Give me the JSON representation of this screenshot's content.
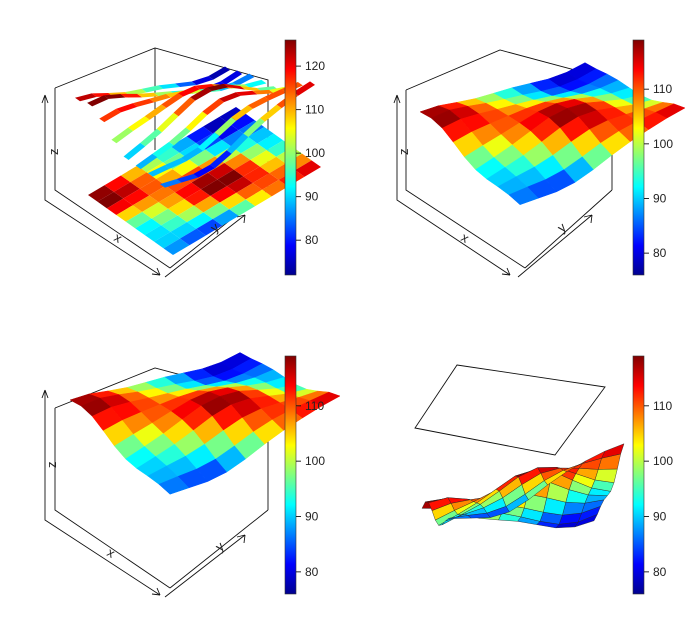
{
  "chart_data": [
    {
      "type": "surface-3d",
      "style": "ribbon",
      "panel": "top-left",
      "axis_labels": {
        "x": "x",
        "y": "y",
        "z": "z"
      },
      "floor": "image",
      "colorbar": {
        "ticks": [
          "80",
          "90",
          "100",
          "110",
          "120"
        ],
        "range": [
          72,
          126
        ]
      }
    },
    {
      "type": "surface-3d",
      "style": "surface",
      "panel": "top-right",
      "axis_labels": {
        "x": "x",
        "y": "y",
        "z": "z"
      },
      "floor": "contour",
      "colorbar": {
        "ticks": [
          "80",
          "90",
          "100",
          "110"
        ],
        "range": [
          76,
          119
        ]
      }
    },
    {
      "type": "surface-3d",
      "style": "surface",
      "panel": "bottom-left",
      "axis_labels": {
        "x": "x",
        "y": "y",
        "z": "z"
      },
      "floor": "filled-contour",
      "colorbar": {
        "ticks": [
          "80",
          "90",
          "100",
          "110"
        ],
        "range": [
          76,
          119
        ]
      }
    },
    {
      "type": "surface-3d",
      "style": "surface-with-contours",
      "panel": "bottom-right",
      "axis_labels": {
        "x": "",
        "y": "",
        "z": ""
      },
      "floor": "contour-top",
      "colorbar": {
        "ticks": [
          "80",
          "90",
          "100",
          "110"
        ],
        "range": [
          76,
          119
        ]
      }
    }
  ],
  "colors": {
    "jet": [
      "#00008f",
      "#0000ff",
      "#0080ff",
      "#00ffff",
      "#80ff80",
      "#ffff00",
      "#ff8000",
      "#ff0000",
      "#800000"
    ]
  }
}
